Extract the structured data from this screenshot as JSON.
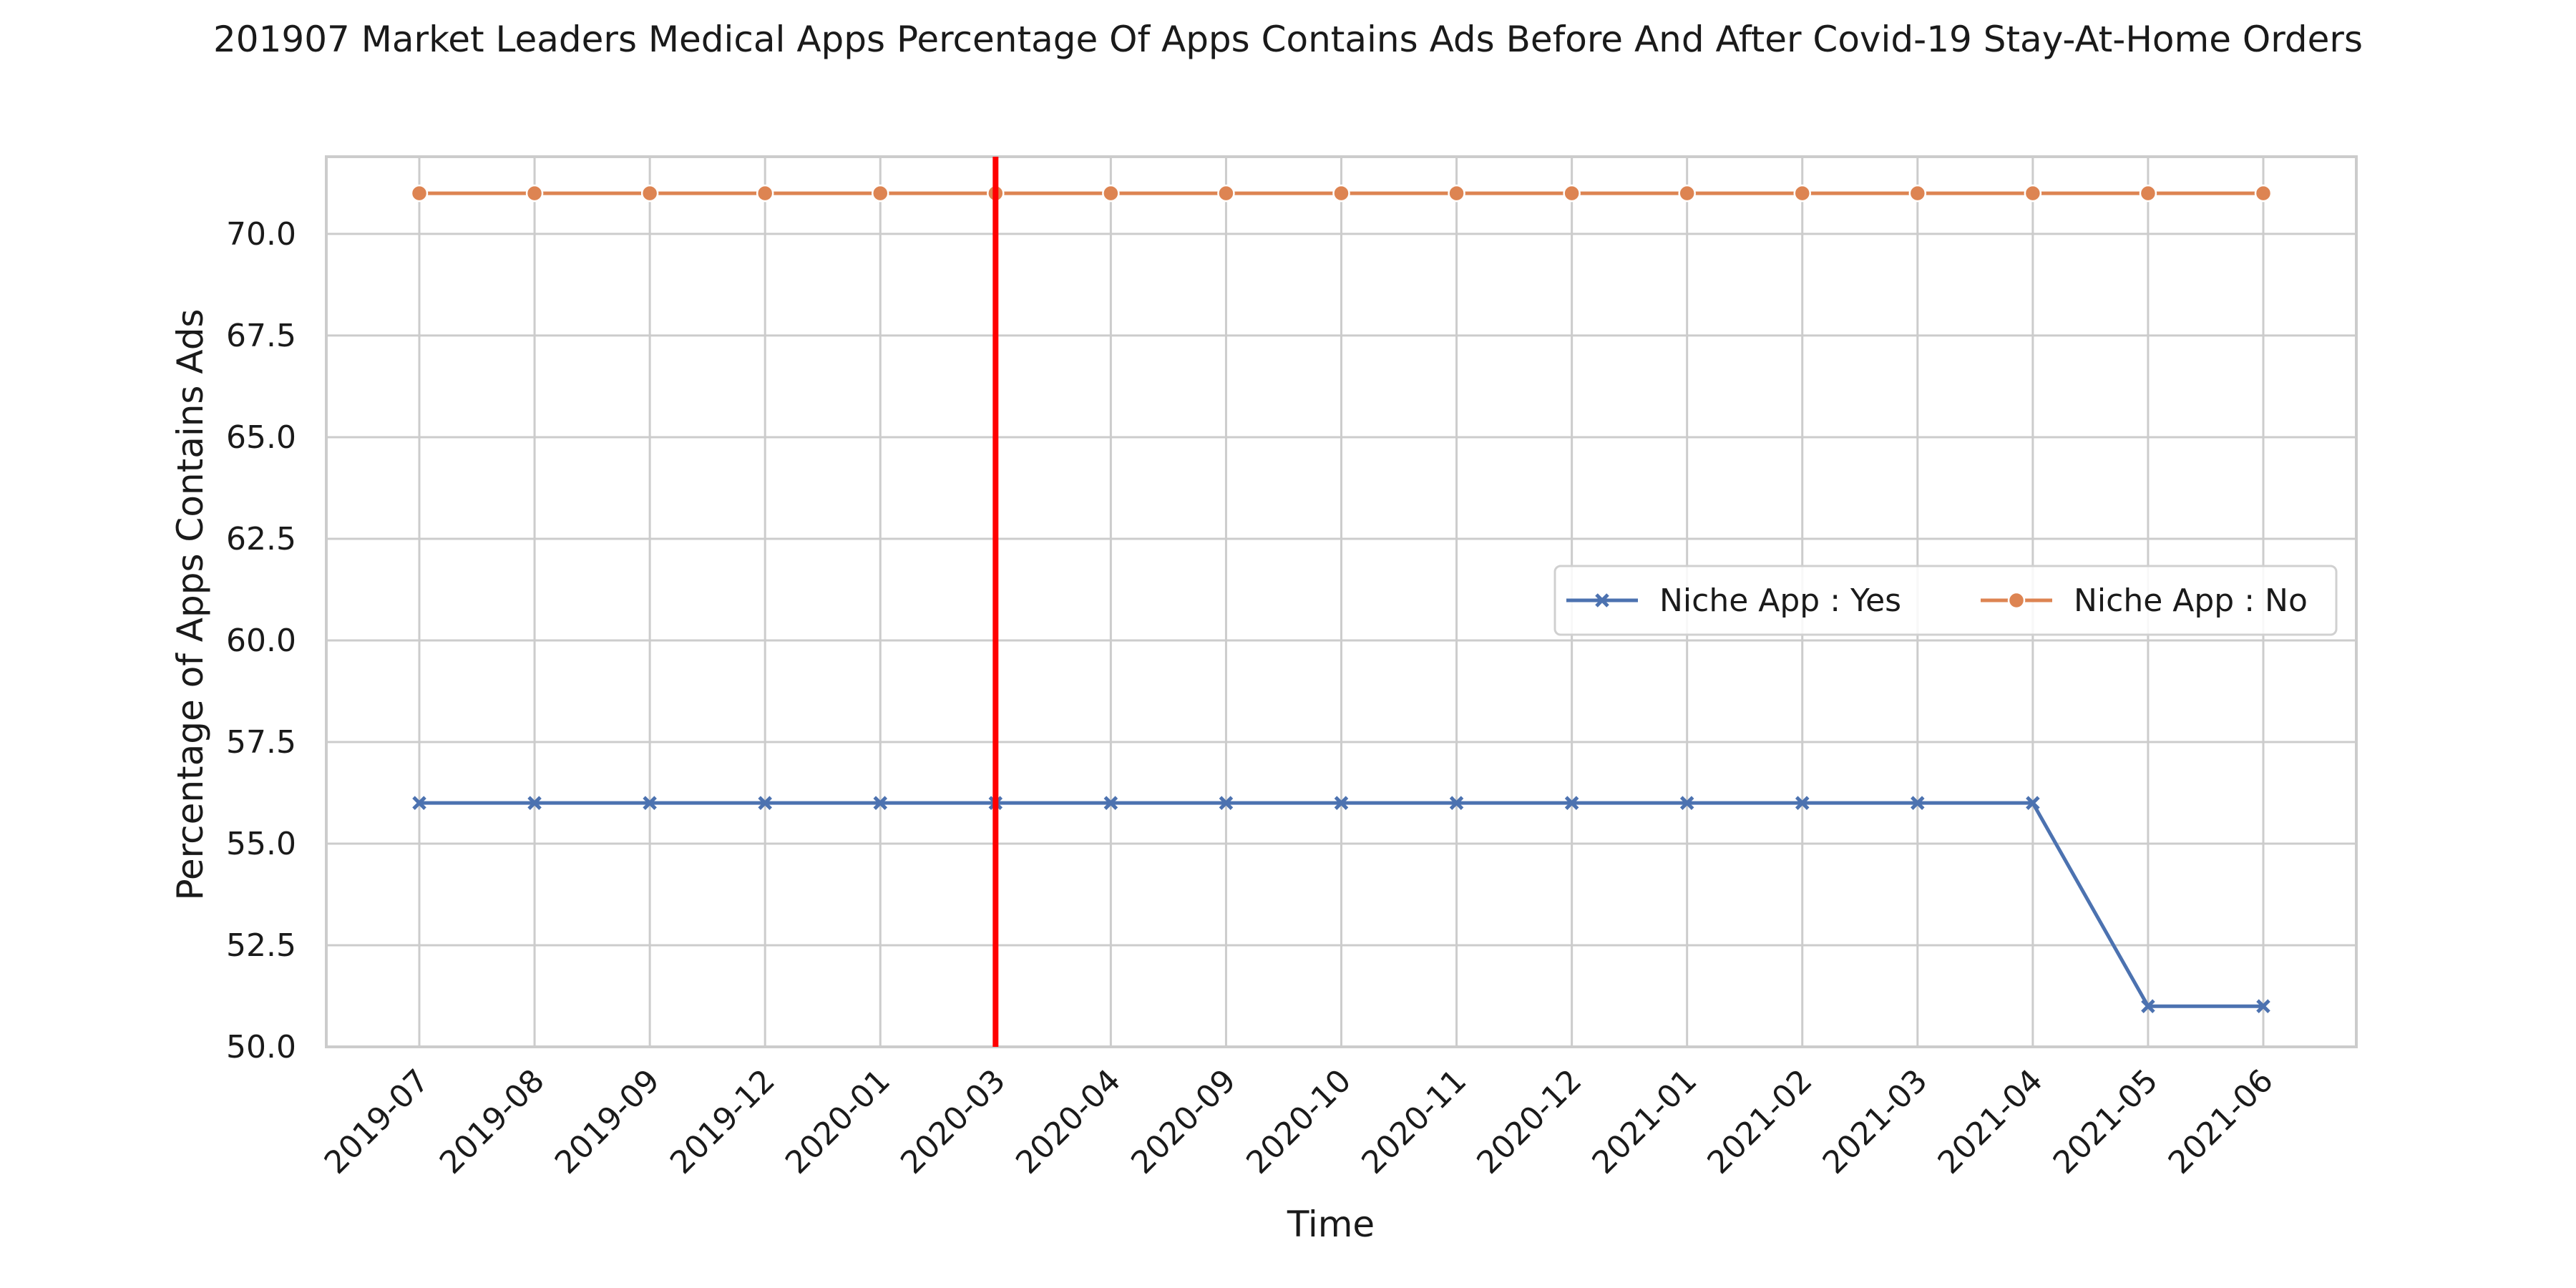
{
  "chart_data": {
    "type": "line",
    "title": "201907 Market Leaders Medical Apps Percentage Of Apps Contains Ads Before And After Covid-19 Stay-At-Home Orders",
    "xlabel": "Time",
    "ylabel": "Percentage of Apps Contains Ads",
    "categories": [
      "2019-07",
      "2019-08",
      "2019-09",
      "2019-12",
      "2020-01",
      "2020-03",
      "2020-04",
      "2020-09",
      "2020-10",
      "2020-11",
      "2020-12",
      "2021-01",
      "2021-02",
      "2021-03",
      "2021-04",
      "2021-05",
      "2021-06"
    ],
    "series": [
      {
        "name": "Niche App : Yes",
        "color": "#4c72b0",
        "marker": "x",
        "values": [
          56,
          56,
          56,
          56,
          56,
          56,
          56,
          56,
          56,
          56,
          56,
          56,
          56,
          56,
          56,
          51,
          51
        ]
      },
      {
        "name": "Niche App : No",
        "color": "#dd8452",
        "marker": "circle",
        "values": [
          71,
          71,
          71,
          71,
          71,
          71,
          71,
          71,
          71,
          71,
          71,
          71,
          71,
          71,
          71,
          71,
          71
        ]
      }
    ],
    "ylim": [
      50,
      71.9
    ],
    "yticks": [
      50.0,
      52.5,
      55.0,
      57.5,
      60.0,
      62.5,
      65.0,
      67.5,
      70.0
    ],
    "ytick_labels": [
      "50.0",
      "52.5",
      "55.0",
      "57.5",
      "60.0",
      "62.5",
      "65.0",
      "67.5",
      "70.0"
    ],
    "grid": true,
    "legend_placement": "center-right",
    "annotations": [
      {
        "type": "vertical-line",
        "x": "2020-03",
        "color": "#ff0000"
      }
    ]
  }
}
